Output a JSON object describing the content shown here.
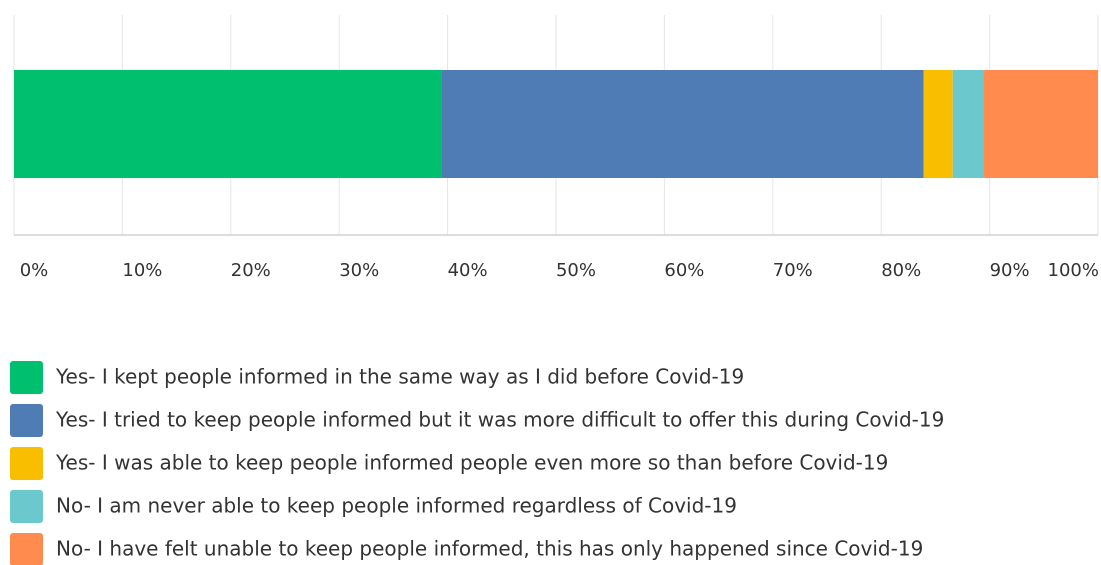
{
  "chart_data": {
    "type": "bar",
    "orientation": "horizontal",
    "stacked": true,
    "series": [
      {
        "name": "Yes- I kept people informed in the same way as I did before Covid-19",
        "color": "#00bf6f",
        "values": [
          39.4
        ]
      },
      {
        "name": "Yes- I tried to keep people informed but it was more difficult to offer this during Covid-19",
        "color": "#507cb6",
        "values": [
          44.5
        ]
      },
      {
        "name": "Yes- I was able to keep people informed people even more so than before Covid-19",
        "color": "#f9be00",
        "values": [
          2.7
        ]
      },
      {
        "name": "No- I am never able to keep people informed regardless of Covid-19",
        "color": "#6bc8cd",
        "values": [
          2.8
        ]
      },
      {
        "name": "No- I have felt unable to keep people informed, this has only happened since Covid-19",
        "color": "#ff8b4f",
        "values": [
          10.6
        ]
      }
    ],
    "xlim": [
      0,
      100
    ],
    "xticks": [
      {
        "value": 0,
        "label": "0%"
      },
      {
        "value": 10,
        "label": "10%"
      },
      {
        "value": 20,
        "label": "20%"
      },
      {
        "value": 30,
        "label": "30%"
      },
      {
        "value": 40,
        "label": "40%"
      },
      {
        "value": 50,
        "label": "50%"
      },
      {
        "value": 60,
        "label": "60%"
      },
      {
        "value": 70,
        "label": "70%"
      },
      {
        "value": 80,
        "label": "80%"
      },
      {
        "value": 90,
        "label": "90%"
      },
      {
        "value": 100,
        "label": "100%"
      }
    ],
    "grid": true
  }
}
